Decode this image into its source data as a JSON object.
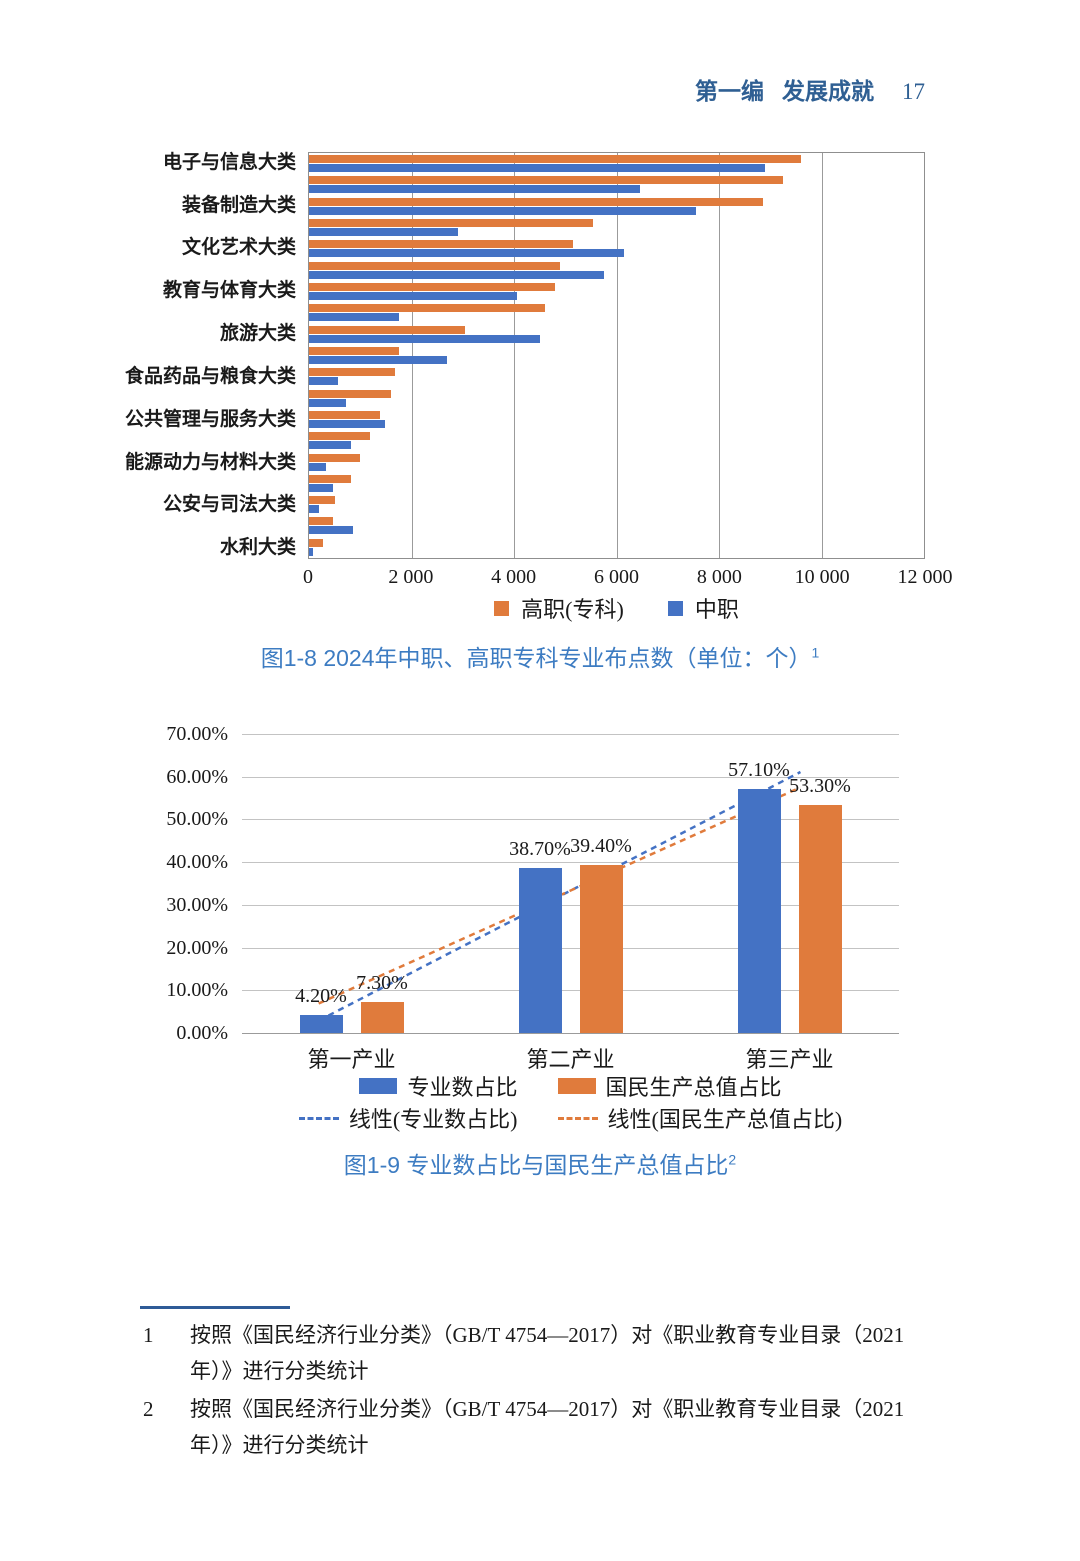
{
  "header": {
    "section": "第一编",
    "title": "发展成就",
    "page_number": "17"
  },
  "chart_data": [
    {
      "type": "bar",
      "orientation": "horizontal",
      "title": "图1-8 2024年中职、高职专科专业布点数（单位：个）",
      "title_superscript": "1",
      "categories": [
        "电子与信息大类",
        "",
        "装备制造大类",
        "",
        "文化艺术大类",
        "",
        "教育与体育大类",
        "",
        "旅游大类",
        "",
        "食品药品与粮食大类",
        "",
        "公共管理与服务大类",
        "",
        "能源动力与材料大类",
        "",
        "公安与司法大类",
        "",
        "水利大类"
      ],
      "series": [
        {
          "name": "高职(专科)",
          "color": "#E07B3C",
          "values": [
            9600,
            9250,
            8850,
            5550,
            5150,
            4900,
            4800,
            4600,
            3050,
            1750,
            1680,
            1600,
            1390,
            1190,
            1000,
            810,
            500,
            470,
            280
          ]
        },
        {
          "name": "中职",
          "color": "#4472C4",
          "values": [
            8900,
            6450,
            7550,
            2900,
            6150,
            5750,
            4050,
            1750,
            4500,
            2700,
            560,
            730,
            1490,
            820,
            330,
            470,
            190,
            850,
            80
          ]
        }
      ],
      "xlim": [
        0,
        12000
      ],
      "x_ticks": [
        "0",
        "2 000",
        "4 000",
        "6 000",
        "8 000",
        "10 000",
        "12 000"
      ],
      "grid": "vertical",
      "legend_position": "bottom"
    },
    {
      "type": "bar",
      "orientation": "vertical",
      "title": "图1-9 专业数占比与国民生产总值占比",
      "title_superscript": "2",
      "categories": [
        "第一产业",
        "第二产业",
        "第三产业"
      ],
      "series": [
        {
          "name": "专业数占比",
          "color": "#4472C4",
          "values": [
            4.2,
            38.7,
            57.1
          ],
          "data_labels": [
            "4.20%",
            "38.70%",
            "57.10%"
          ]
        },
        {
          "name": "国民生产总值占比",
          "color": "#E07B3C",
          "values": [
            7.3,
            39.4,
            53.3
          ],
          "data_labels": [
            "7.30%",
            "39.40%",
            "53.30%"
          ]
        }
      ],
      "trendlines": [
        {
          "name": "线性(专业数占比)",
          "color": "#4472C4",
          "style": "dashed",
          "from_band": 0.85,
          "from_pct": 2.9,
          "to_band": 3.05,
          "to_pct": 61.1
        },
        {
          "name": "线性(国民生产总值占比)",
          "color": "#E07B3C",
          "style": "dashed",
          "from_band": 0.85,
          "from_pct": 6.9,
          "to_band": 3.05,
          "to_pct": 57.5
        }
      ],
      "ylim": [
        0,
        70
      ],
      "y_ticks": [
        "0.00%",
        "10.00%",
        "20.00%",
        "30.00%",
        "40.00%",
        "50.00%",
        "60.00%",
        "70.00%"
      ],
      "grid": "horizontal",
      "legend_position": "bottom"
    }
  ],
  "footnotes": [
    {
      "num": "1",
      "text": "按照《国民经济行业分类》（GB/T 4754—2017）对《职业教育专业目录（2021年）》进行分类统计"
    },
    {
      "num": "2",
      "text": "按照《国民经济行业分类》（GB/T 4754—2017）对《职业教育专业目录（2021年）》进行分类统计"
    }
  ]
}
